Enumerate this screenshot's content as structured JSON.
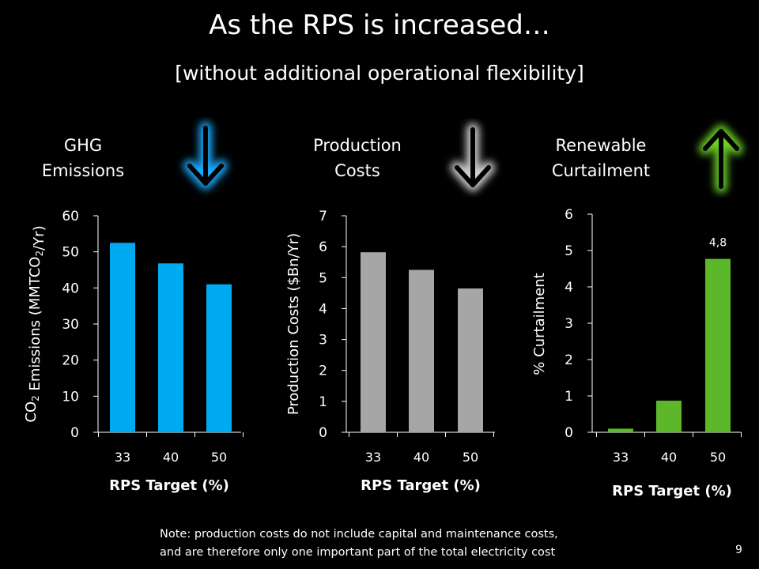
{
  "slide": {
    "title": "As the RPS is increased…",
    "subtitle": "[without additional operational flexibility]",
    "note_line1": "Note: production costs do not include capital and maintenance costs,",
    "note_line2": "and are therefore only one important part of the total electricity cost",
    "page_number": "9"
  },
  "panels": [
    {
      "title_line1": "GHG",
      "title_line2": "Emissions",
      "arrow": "arrow-down-icon",
      "glow": "#1eaaff"
    },
    {
      "title_line1": "Production",
      "title_line2": "Costs",
      "arrow": "arrow-down-icon",
      "glow": "#d0d0d0"
    },
    {
      "title_line1": "Renewable",
      "title_line2": "Curtailment",
      "arrow": "arrow-up-icon",
      "glow": "#6cd428"
    }
  ],
  "chart_data": [
    {
      "type": "bar",
      "categories": [
        "33",
        "40",
        "50"
      ],
      "values": [
        52.5,
        46.8,
        41.0
      ],
      "xlabel": "RPS Target (%)",
      "ylabel": "CO2 Emissions (MMTCO2/Yr)",
      "ylim": [
        0,
        60
      ],
      "yticks": [
        "0",
        "10",
        "20",
        "30",
        "40",
        "50",
        "60"
      ],
      "color": "#00aaf0",
      "data_labels": [
        "",
        "",
        ""
      ]
    },
    {
      "type": "bar",
      "categories": [
        "33",
        "40",
        "50"
      ],
      "values": [
        5.82,
        5.25,
        4.65
      ],
      "xlabel": "RPS Target (%)",
      "ylabel": "Production Costs ($Bn/Yr)",
      "ylim": [
        0,
        7
      ],
      "yticks": [
        "0",
        "1",
        "2",
        "3",
        "4",
        "5",
        "6",
        "7"
      ],
      "color": "#a6a6a6",
      "data_labels": [
        "",
        "",
        ""
      ]
    },
    {
      "type": "bar",
      "categories": [
        "33",
        "40",
        "50"
      ],
      "values": [
        0.1,
        0.87,
        4.77
      ],
      "xlabel": "RPS Target (%)",
      "ylabel": "% Curtailment",
      "ylim": [
        0,
        6
      ],
      "yticks": [
        "0",
        "1",
        "2",
        "3",
        "4",
        "5",
        "6"
      ],
      "color": "#5cb82a",
      "data_labels": [
        "",
        "",
        "4,8"
      ]
    }
  ]
}
